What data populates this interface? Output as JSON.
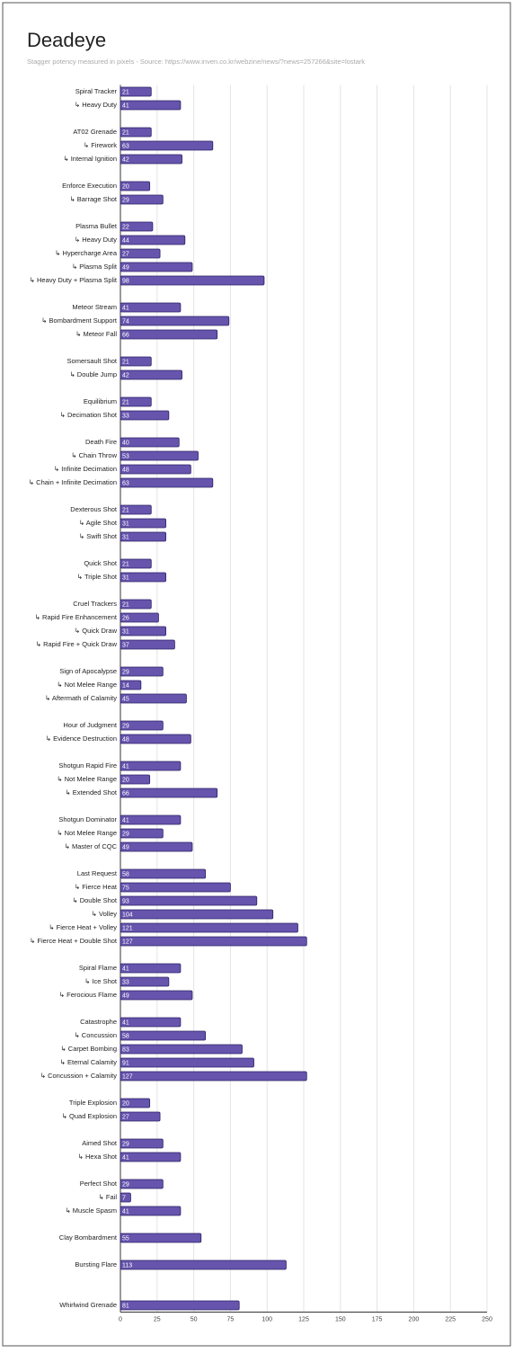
{
  "chart_data": {
    "type": "bar",
    "orientation": "horizontal",
    "title": "Deadeye",
    "subtitle": "Stagger potency measured in pixels - Source: https://www.inven.co.kr/webzine/news/?news=257266&site=lostark",
    "color": "#6654ad",
    "categories": [
      "Spiral Tracker",
      "↳ Heavy Duty",
      null,
      "AT02 Grenade",
      "↳ Firework",
      "↳ Internal Ignition",
      null,
      "Enforce Execution",
      "↳ Barrage Shot",
      null,
      "Plasma Bullet",
      "↳ Heavy Duty",
      "↳ Hypercharge Area",
      "↳ Plasma Split",
      "↳ Heavy Duty + Plasma Split",
      null,
      "Meteor Stream",
      "↳ Bombardment Support",
      "↳ Meteor Fall",
      null,
      "Somersault Shot",
      "↳ Double Jump",
      null,
      "Equilibrium",
      "↳ Decimation Shot",
      null,
      "Death Fire",
      "↳ Chain Throw",
      "↳ Infinite Decimation",
      "↳ Chain + Infinite Decimation",
      null,
      "Dexterous Shot",
      "↳ Agile Shot",
      "↳ Swift Shot",
      null,
      "Quick Shot",
      "↳ Triple Shot",
      null,
      "Cruel Trackers",
      "↳ Rapid Fire Enhancement",
      "↳ Quick Draw",
      "↳ Rapid Fire + Quick Draw",
      null,
      "Sign of Apocalypse",
      "↳ Not Melee Range",
      "↳ Aftermath of Calamity",
      null,
      "Hour of Judgment",
      "↳ Evidence Destruction",
      null,
      "Shotgun Rapid Fire",
      "↳ Not Melee Range",
      "↳ Extended Shot",
      null,
      "Shotgun Dominator",
      "↳ Not Melee Range",
      "↳ Master of CQC",
      null,
      "Last Request",
      "↳ Fierce Heat",
      "↳ Double Shot",
      "↳ Volley",
      "↳ Fierce Heat + Volley",
      "↳ Fierce Heat + Double Shot",
      null,
      "Spiral Flame",
      "↳ Ice Shot",
      "↳ Ferocious Flame",
      null,
      "Catastrophe",
      "↳ Concussion",
      "↳ Carpet Bombing",
      "↳ Eternal Calamity",
      "↳ Concussion + Calamity",
      null,
      "Triple Explosion",
      "↳ Quad Explosion",
      null,
      "Aimed Shot",
      "↳ Hexa Shot",
      null,
      "Perfect Shot",
      "↳ Fail",
      "↳ Muscle Spasm",
      null,
      "Clay Bombardment",
      null,
      "Bursting Flare",
      null,
      null,
      "Whirlwind Grenade"
    ],
    "values": [
      21,
      41,
      null,
      21,
      63,
      42,
      null,
      20,
      29,
      null,
      22,
      44,
      27,
      49,
      98,
      null,
      41,
      74,
      66,
      null,
      21,
      42,
      null,
      21,
      33,
      null,
      40,
      53,
      48,
      63,
      null,
      21,
      31,
      31,
      null,
      21,
      31,
      null,
      21,
      26,
      31,
      37,
      null,
      29,
      14,
      45,
      null,
      29,
      48,
      null,
      41,
      20,
      66,
      null,
      41,
      29,
      49,
      null,
      58,
      75,
      93,
      104,
      121,
      127,
      null,
      41,
      33,
      49,
      null,
      41,
      58,
      83,
      91,
      127,
      null,
      20,
      27,
      null,
      29,
      41,
      null,
      29,
      7,
      41,
      null,
      55,
      null,
      113,
      null,
      null,
      81
    ],
    "xlim": [
      0,
      250
    ],
    "xticks": [
      0,
      25,
      50,
      75,
      100,
      125,
      150,
      175,
      200,
      225,
      250
    ],
    "grid": true
  }
}
